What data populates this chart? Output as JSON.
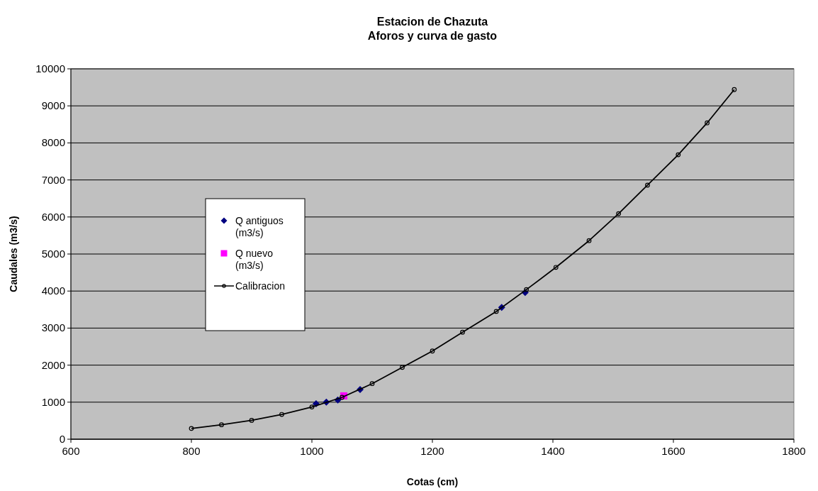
{
  "chart_data": {
    "type": "scatter",
    "title": "Estacion de Chazuta\nAforos y curva de gasto",
    "xlabel": "Cotas (cm)",
    "ylabel": "Caudales (m3/s)",
    "xlim": [
      600,
      1800
    ],
    "xticks": [
      600,
      800,
      1000,
      1200,
      1400,
      1600,
      1800
    ],
    "ylim": [
      0,
      10000
    ],
    "yticks": [
      0,
      1000,
      2000,
      3000,
      4000,
      5000,
      6000,
      7000,
      8000,
      9000,
      10000
    ],
    "grid": "y",
    "legend": "left",
    "series": [
      {
        "name": "Q antiguos (m3/s)",
        "type": "scatter",
        "marker": "diamond",
        "color": "#000080",
        "x": [
          1007,
          1024,
          1043,
          1080,
          1315,
          1354
        ],
        "values": [
          960,
          1000,
          1060,
          1340,
          3560,
          3960
        ]
      },
      {
        "name": "Q nuevo (m3/s)",
        "type": "scatter",
        "marker": "square",
        "color": "#ff00ff",
        "x": [
          1053
        ],
        "values": [
          1170
        ]
      },
      {
        "name": "Calibracion",
        "type": "line",
        "marker": "circle",
        "line_style": "solid",
        "color": "#000000",
        "x": [
          800,
          850,
          900,
          950,
          1000,
          1050,
          1100,
          1150,
          1200,
          1250,
          1306,
          1356,
          1405,
          1460,
          1509,
          1557,
          1608,
          1656,
          1701
        ],
        "values": [
          290,
          390,
          510,
          670,
          870,
          1130,
          1500,
          1940,
          2380,
          2890,
          3450,
          4040,
          4640,
          5360,
          6090,
          6860,
          7680,
          8540,
          9440
        ]
      }
    ]
  }
}
